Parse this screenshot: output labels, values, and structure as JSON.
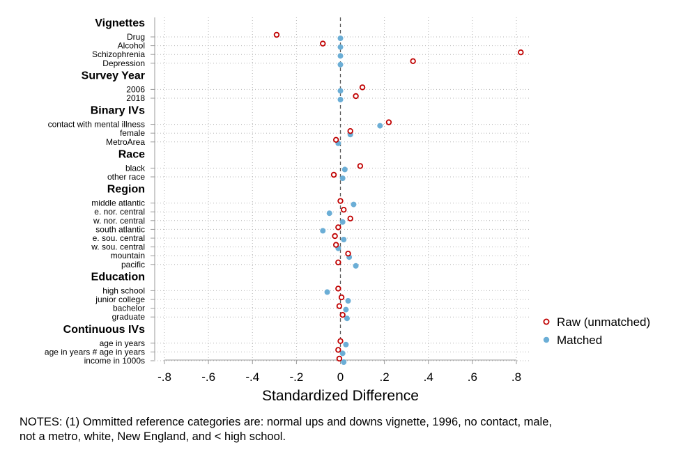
{
  "chart_data": {
    "type": "scatter",
    "orientation": "horizontal-dot-plot",
    "xlabel": "Standardized Difference",
    "xlim": [
      -0.8,
      0.8
    ],
    "xticks": [
      -0.8,
      -0.6,
      -0.4,
      -0.2,
      0,
      0.2,
      0.4,
      0.6,
      0.8
    ],
    "xtick_labels": [
      "-.8",
      "-.6",
      "-.4",
      "-.2",
      "0",
      ".2",
      ".4",
      ".6",
      ".8"
    ],
    "reference_line": 0,
    "legend": {
      "position": "right",
      "entries": [
        {
          "label": "Raw (unmatched)",
          "series": "raw"
        },
        {
          "label": "Matched",
          "series": "matched"
        }
      ]
    },
    "groups": [
      {
        "title": "Vignettes",
        "rows": [
          {
            "label": "Drug",
            "raw": -0.29,
            "matched": 0.0
          },
          {
            "label": "Alcohol",
            "raw": -0.08,
            "matched": 0.0
          },
          {
            "label": "Schizophrenia",
            "raw": 0.82,
            "matched": 0.0
          },
          {
            "label": "Depression",
            "raw": 0.33,
            "matched": 0.0
          }
        ]
      },
      {
        "title": "Survey Year",
        "rows": [
          {
            "label": "2006",
            "raw": 0.1,
            "matched": 0.0
          },
          {
            "label": "2018",
            "raw": 0.07,
            "matched": 0.0
          }
        ]
      },
      {
        "title": "Binary IVs",
        "rows": [
          {
            "label": "contact with mental illness",
            "raw": 0.22,
            "matched": 0.18
          },
          {
            "label": "female",
            "raw": 0.045,
            "matched": 0.045
          },
          {
            "label": "MetroArea",
            "raw": -0.02,
            "matched": -0.01
          }
        ]
      },
      {
        "title": "Race",
        "rows": [
          {
            "label": "black",
            "raw": 0.09,
            "matched": 0.02
          },
          {
            "label": "other race",
            "raw": -0.03,
            "matched": 0.01
          }
        ]
      },
      {
        "title": "Region",
        "rows": [
          {
            "label": "middle atlantic",
            "raw": 0.0,
            "matched": 0.06
          },
          {
            "label": "e. nor. central",
            "raw": 0.015,
            "matched": -0.05
          },
          {
            "label": "w. nor. central",
            "raw": 0.045,
            "matched": 0.01
          },
          {
            "label": "south atlantic",
            "raw": -0.01,
            "matched": -0.08
          },
          {
            "label": "e. sou. central",
            "raw": -0.025,
            "matched": 0.015
          },
          {
            "label": "w. sou. central",
            "raw": -0.02,
            "matched": -0.01
          },
          {
            "label": "mountain",
            "raw": 0.035,
            "matched": 0.04
          },
          {
            "label": "pacific",
            "raw": -0.01,
            "matched": 0.07
          }
        ]
      },
      {
        "title": "Education",
        "rows": [
          {
            "label": "high school",
            "raw": -0.01,
            "matched": -0.06
          },
          {
            "label": "junior college",
            "raw": 0.005,
            "matched": 0.035
          },
          {
            "label": "bachelor",
            "raw": -0.005,
            "matched": 0.025
          },
          {
            "label": "graduate",
            "raw": 0.01,
            "matched": 0.03
          }
        ]
      },
      {
        "title": "Continuous IVs",
        "rows": [
          {
            "label": "age in years",
            "raw": 0.0,
            "matched": 0.025
          },
          {
            "label": "age in years # age in years",
            "raw": -0.01,
            "matched": 0.01
          },
          {
            "label": "income in 1000s",
            "raw": -0.005,
            "matched": 0.015
          }
        ]
      }
    ],
    "colors": {
      "raw": "#c00000",
      "matched": "#6baed6",
      "grid": "#b4b4b4",
      "axis": "#999999",
      "zero_line": "#555555"
    }
  },
  "notes": {
    "line1": "NOTES: (1) Ommitted reference categories are: normal ups and downs vignette, 1996, no contact, male,",
    "line2": "not a metro, white, New England, and < high school."
  }
}
